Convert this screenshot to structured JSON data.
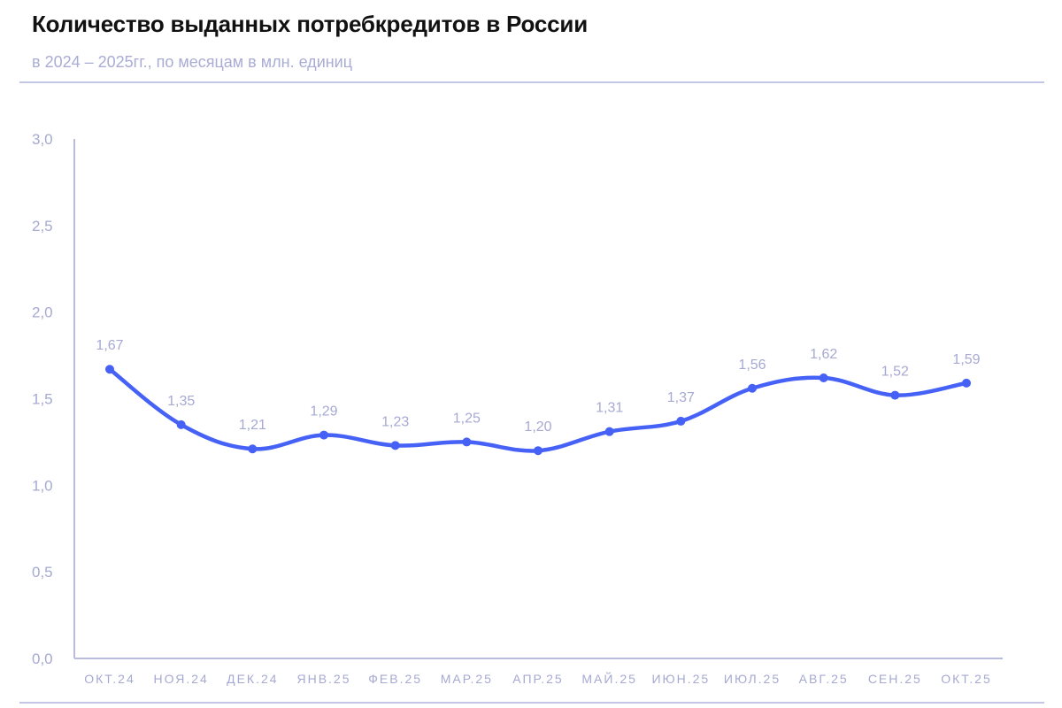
{
  "header": {
    "title": "Количество выданных потребкредитов в России",
    "subtitle": "в 2024 – 2025гг., по месяцам в млн. единиц"
  },
  "colors": {
    "line": "#4661F5",
    "axis": "#b9bce0",
    "tick_text": "#a6a9d2",
    "rule": "#c4c6e6",
    "title": "#111111"
  },
  "chart_data": {
    "type": "line",
    "title": "Количество выданных потребкредитов в России",
    "subtitle": "в 2024 – 2025гг., по месяцам в млн. единиц",
    "xlabel": "",
    "ylabel": "",
    "ylim": [
      0,
      3.0
    ],
    "yticks": [
      "0,0",
      "0,5",
      "1,0",
      "1,5",
      "2,0",
      "2,5",
      "3,0"
    ],
    "ytick_values": [
      0,
      0.5,
      1.0,
      1.5,
      2.0,
      2.5,
      3.0
    ],
    "grid": false,
    "legend": null,
    "categories": [
      "ОКТ.24",
      "НОЯ.24",
      "ДЕК.24",
      "ЯНВ.25",
      "ФЕВ.25",
      "МАР.25",
      "АПР.25",
      "МАЙ.25",
      "ИЮН.25",
      "ИЮЛ.25",
      "АВГ.25",
      "СЕН.25",
      "ОКТ.25"
    ],
    "values": [
      1.67,
      1.35,
      1.21,
      1.29,
      1.23,
      1.25,
      1.2,
      1.31,
      1.37,
      1.56,
      1.62,
      1.52,
      1.59
    ],
    "value_labels": [
      "1,67",
      "1,35",
      "1,21",
      "1,29",
      "1,23",
      "1,25",
      "1,20",
      "1,31",
      "1,37",
      "1,56",
      "1,62",
      "1,52",
      "1,59"
    ],
    "smooth": true,
    "markers": true
  }
}
